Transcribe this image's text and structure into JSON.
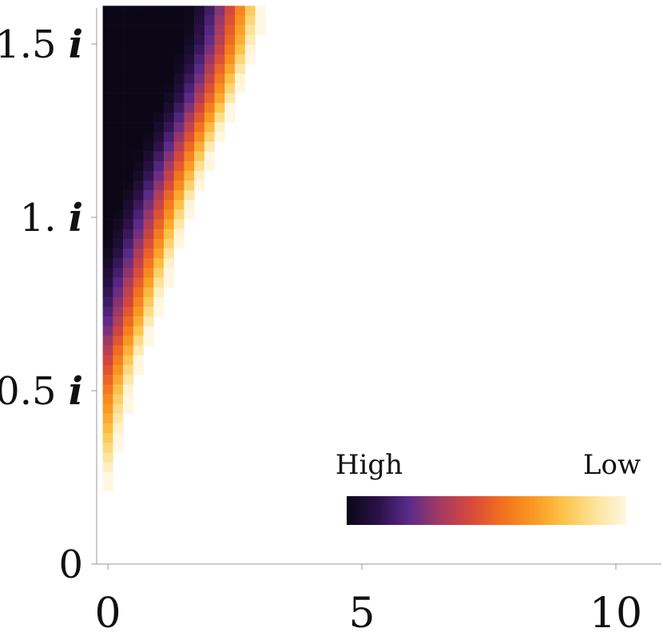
{
  "chart_data": {
    "type": "heatmap",
    "title": "",
    "xlabel": "",
    "ylabel": "",
    "xlim": [
      -0.2,
      10.9
    ],
    "ylim": [
      -0.02,
      1.61
    ],
    "x_ticks": [
      {
        "value": 0,
        "label": "0"
      },
      {
        "value": 5,
        "label": "5"
      },
      {
        "value": 10,
        "label": "10"
      }
    ],
    "y_ticks": [
      {
        "value": 0,
        "label": "0"
      },
      {
        "value": 0.5,
        "label": "0.5 i"
      },
      {
        "value": 1.0,
        "label": "1. i"
      },
      {
        "value": 1.5,
        "label": "1.5 i"
      }
    ],
    "grid": {
      "x_start": -0.1,
      "x_step": 0.2,
      "y_top": 1.61,
      "y_step": 0.028
    },
    "region_boundary": {
      "note": "cells exist to the left of the boundary; boundary x as a function of imaginary part y",
      "points": [
        {
          "y": 0.2,
          "x": -0.1
        },
        {
          "y": 0.31,
          "x": 0.1
        },
        {
          "y": 0.48,
          "x": 0.37
        },
        {
          "y": 0.6,
          "x": 0.62
        },
        {
          "y": 0.7,
          "x": 0.87
        },
        {
          "y": 0.82,
          "x": 1.12
        },
        {
          "y": 0.93,
          "x": 1.37
        },
        {
          "y": 1.04,
          "x": 1.62
        },
        {
          "y": 1.18,
          "x": 2.0
        },
        {
          "y": 1.35,
          "x": 2.5
        },
        {
          "y": 1.5,
          "x": 2.85
        },
        {
          "y": 1.61,
          "x": 3.0
        }
      ]
    },
    "value_model": "value = distance to boundary (in x units); high value = dark",
    "colorbar": {
      "palette": [
        "#0b0716",
        "#2b1147",
        "#5a2a8a",
        "#a43a62",
        "#d6493c",
        "#f2701e",
        "#fa9822",
        "#fcc44a",
        "#fde39a",
        "#fff7e0"
      ],
      "label_high": "High",
      "label_low": "Low",
      "orientation": "horizontal",
      "position": "bottom-right"
    }
  }
}
